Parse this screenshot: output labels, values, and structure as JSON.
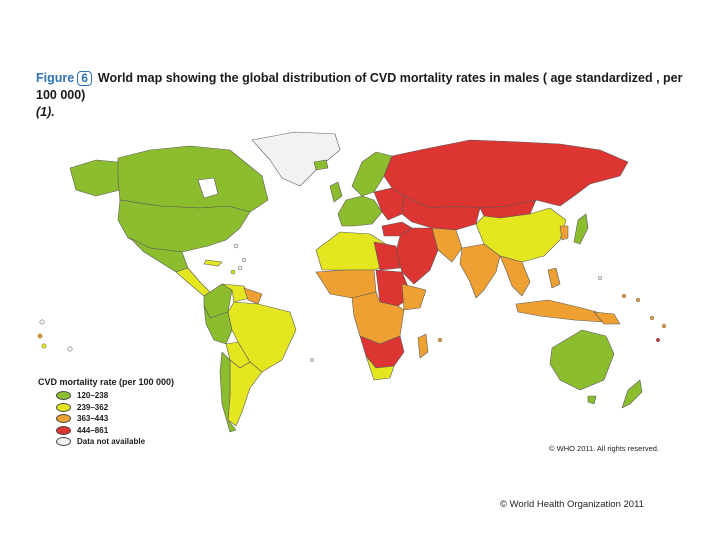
{
  "figure": {
    "label": "Figure",
    "number": "6",
    "title": "World map showing the global distribution of CVD mortality rates in males ( age standardized , per 100 000)",
    "citation": "(1)."
  },
  "legend": {
    "title": "CVD mortality rate (per 100 000)",
    "items": [
      {
        "label": "120–238",
        "color": "#8cbd2f"
      },
      {
        "label": "239–362",
        "color": "#e4e61f"
      },
      {
        "label": "363–443",
        "color": "#eea032"
      },
      {
        "label": "444–861",
        "color": "#dd3531"
      },
      {
        "label": "Data not available",
        "color": "#f2f2f2"
      }
    ]
  },
  "rights": "© WHO 2011. All rights reserved.",
  "credit": "© World Health Organization 2011"
}
